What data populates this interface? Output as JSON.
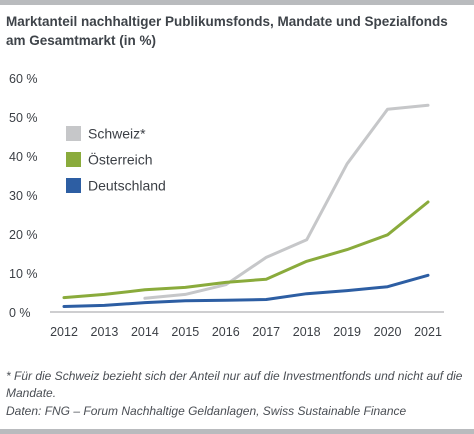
{
  "title": "Marktanteil nachhaltiger Publikumsfonds, Mandate und Spezialfonds am Gesamtmarkt (in %)",
  "footnote": "* Für die Schweiz bezieht sich der Anteil nur auf die Investmentfonds und nicht auf die Mandate.",
  "source": "Daten: FNG – Forum Nachhaltige Geldanlagen, Swiss Sustainable Finance",
  "chart_data": {
    "type": "line",
    "title": "Marktanteil nachhaltiger Publikumsfonds, Mandate und Spezialfonds am Gesamtmarkt (in %)",
    "xlabel": "",
    "ylabel": "",
    "x": [
      2012,
      2013,
      2014,
      2015,
      2016,
      2017,
      2018,
      2019,
      2020,
      2021
    ],
    "ylim": [
      0,
      60
    ],
    "yticks": [
      0,
      10,
      20,
      30,
      40,
      50,
      60
    ],
    "ytick_labels": [
      "0 %",
      "10 %",
      "20 %",
      "30 %",
      "40 %",
      "50 %",
      "60 %"
    ],
    "grid": false,
    "legend_position": "top-left",
    "series": [
      {
        "name": "Schweiz*",
        "color": "#c6c7c9",
        "values": [
          null,
          null,
          3.5,
          4.5,
          7,
          14,
          18.5,
          38,
          52,
          53
        ]
      },
      {
        "name": "Österreich",
        "color": "#8aab3c",
        "values": [
          3.7,
          4.5,
          5.7,
          6.3,
          7.6,
          8.4,
          13,
          16,
          19.8,
          28.2
        ]
      },
      {
        "name": "Deutschland",
        "color": "#2d5ea3",
        "values": [
          1.4,
          1.7,
          2.4,
          2.9,
          3,
          3.2,
          4.7,
          5.5,
          6.5,
          9.4
        ]
      }
    ]
  }
}
